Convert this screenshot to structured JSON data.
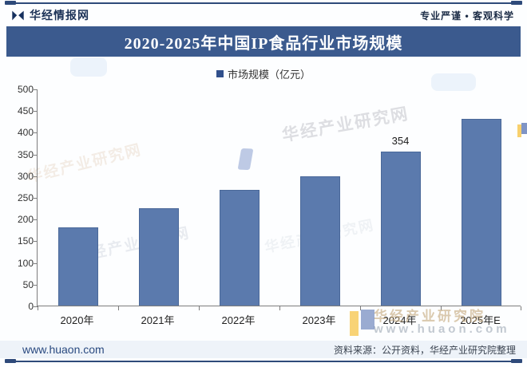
{
  "header": {
    "brand": "华经情报网",
    "slogan": "专业严谨 • 客观科学"
  },
  "title": "2020-2025年中国IP食品行业市场规模",
  "legend": {
    "label": "市场规模（亿元）"
  },
  "chart_data": {
    "type": "bar",
    "title": "2020-2025年中国IP食品行业市场规模",
    "series_name": "市场规模（亿元）",
    "categories": [
      "2020年",
      "2021年",
      "2022年",
      "2023年",
      "2024年",
      "2025年E"
    ],
    "values": [
      180,
      225,
      267,
      297,
      354,
      430
    ],
    "shown_labels": [
      "",
      "",
      "",
      "",
      "354",
      ""
    ],
    "xlabel": "",
    "ylabel": "市场规模（亿元）",
    "ylim": [
      0,
      500
    ],
    "ytick_step": 50,
    "grid": false,
    "legend_position": "top"
  },
  "watermarks": {
    "diagonal_text": "华经产业研究网",
    "institute": "华经产业研究院",
    "url": "www.huaon.com"
  },
  "footer": {
    "url": "www.huaon.com",
    "source": "资料来源：公开资料，华经产业研究院整理"
  },
  "colors": {
    "band": "#3b5a8e",
    "bar": "#5b7aad",
    "navy": "#16305e",
    "rule": "#2e4a7a"
  }
}
